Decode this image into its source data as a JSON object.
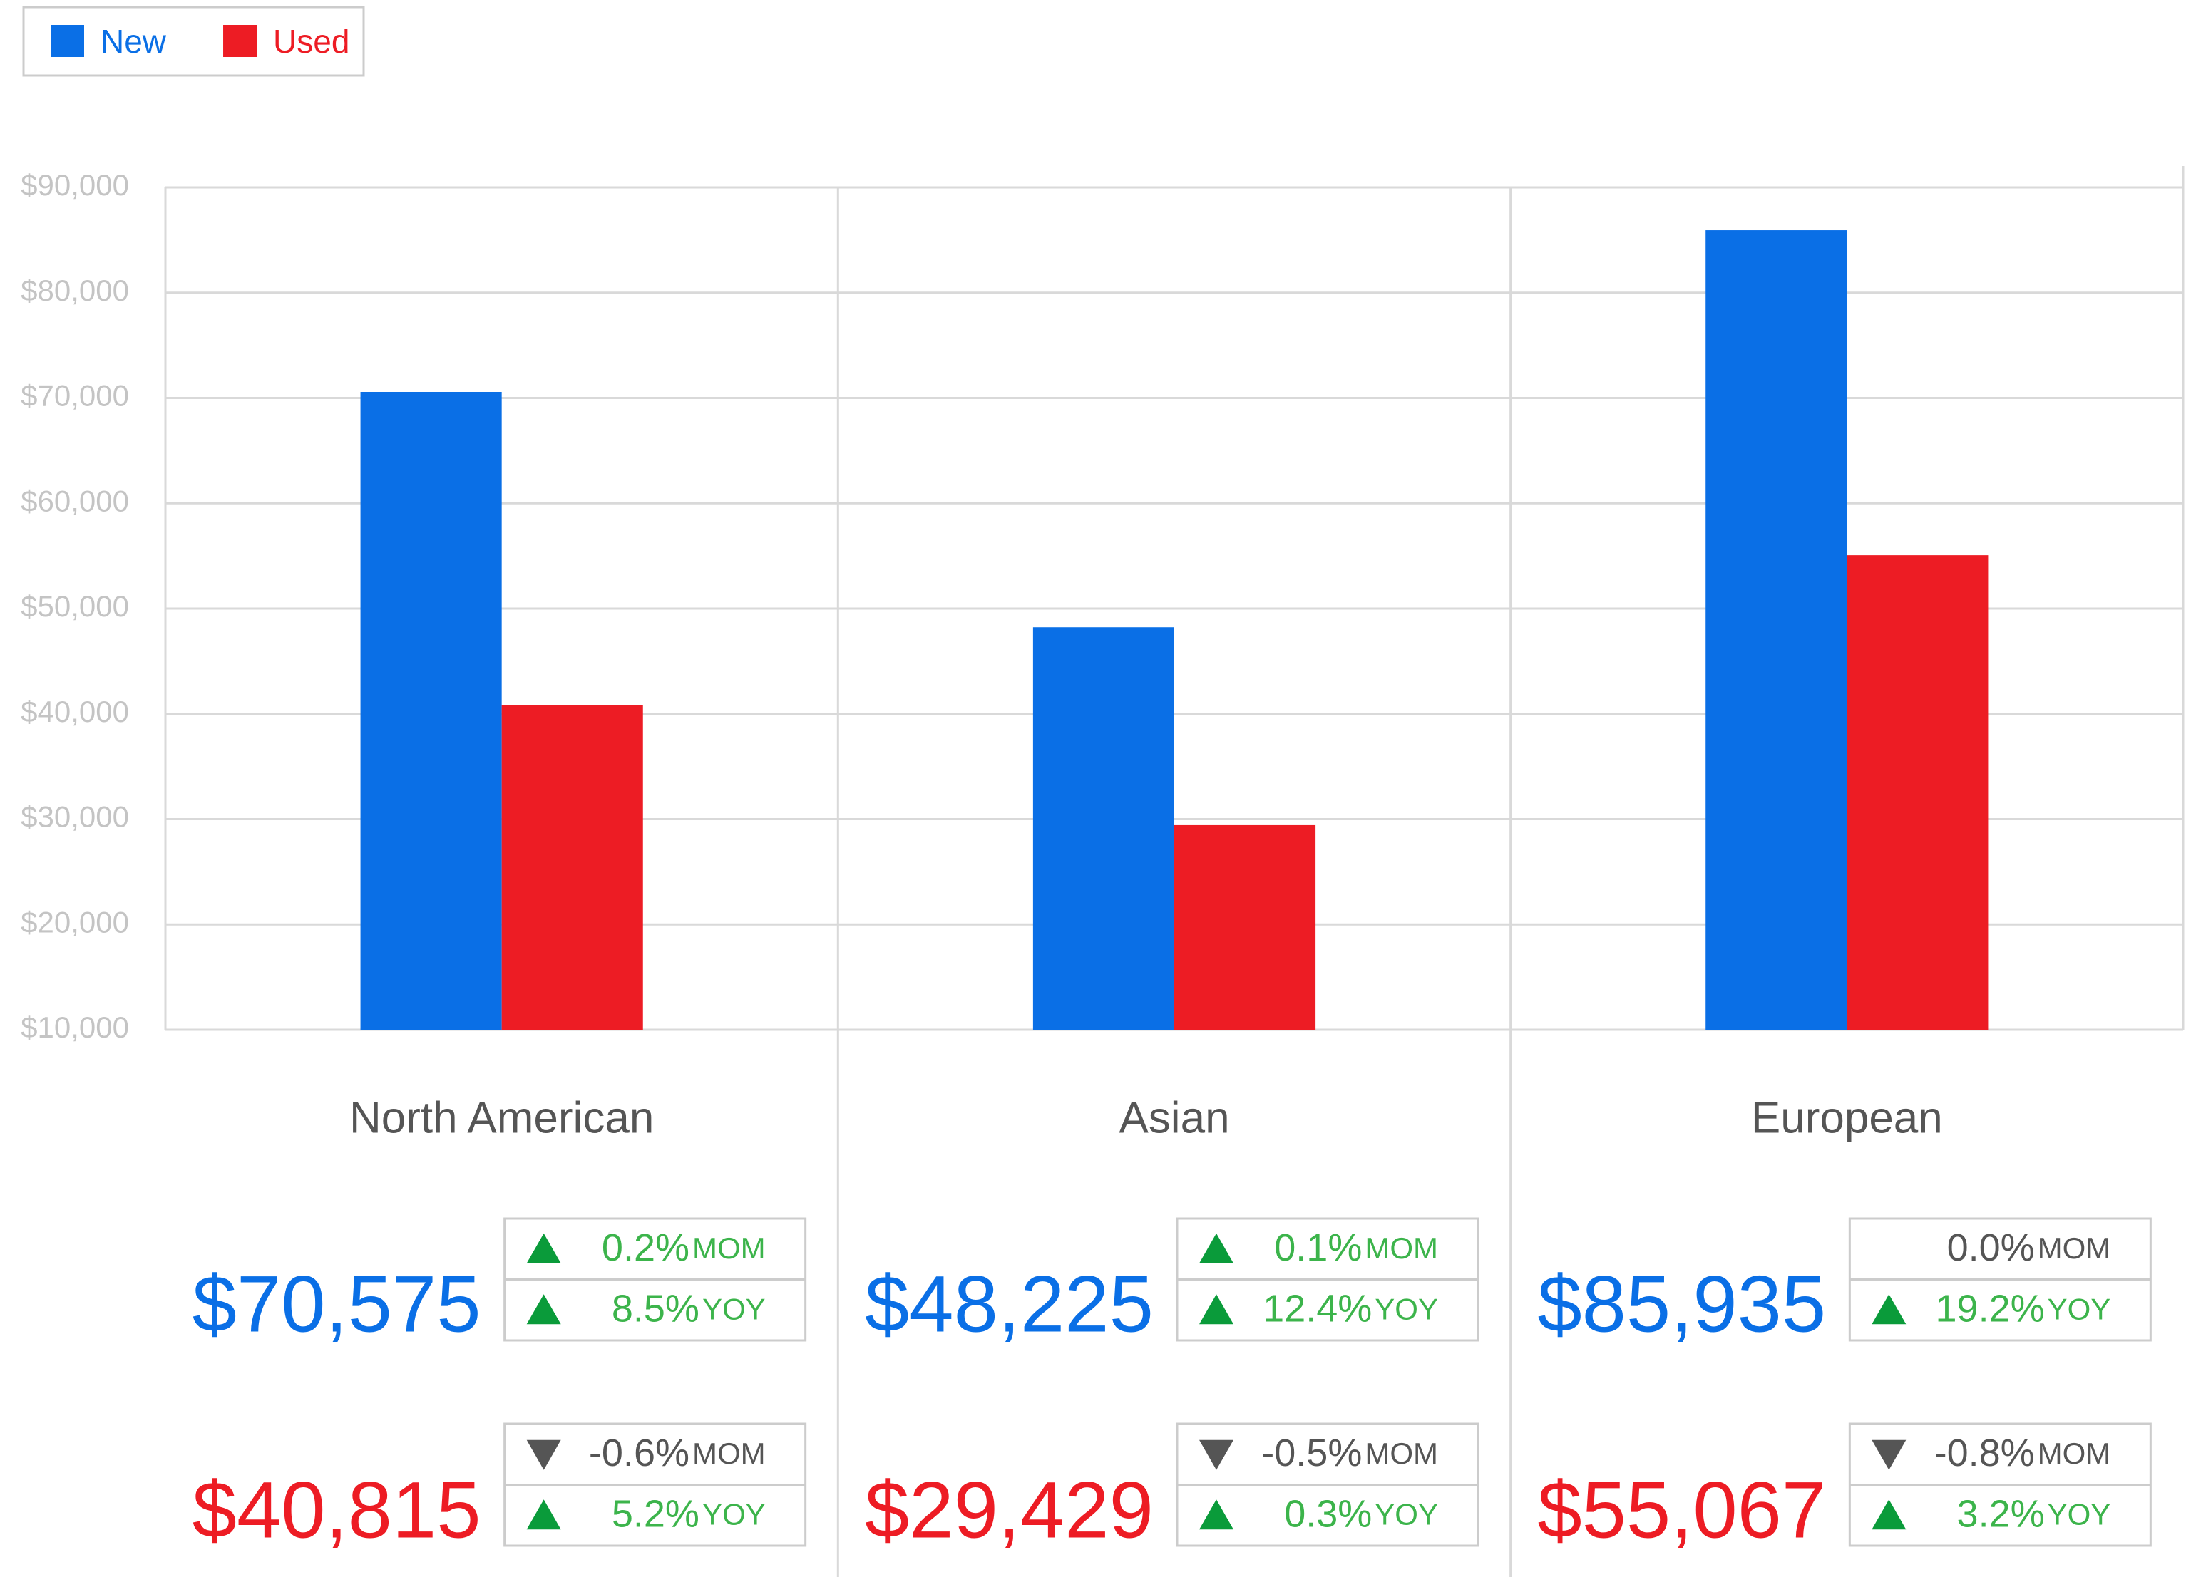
{
  "chart_data": {
    "type": "bar",
    "categories": [
      "North American",
      "Asian",
      "European"
    ],
    "series": [
      {
        "name": "New",
        "color": "#0a6fe6",
        "values": [
          70575,
          48225,
          85935
        ],
        "value_labels": [
          "$70,575",
          "$48,225",
          "$85,935"
        ],
        "mom": [
          0.2,
          0.1,
          0.0
        ],
        "mom_labels": [
          "0.2%",
          "0.1%",
          "0.0%"
        ],
        "yoy": [
          8.5,
          12.4,
          19.2
        ],
        "yoy_labels": [
          "8.5%",
          "12.4%",
          "19.2%"
        ]
      },
      {
        "name": "Used",
        "color": "#ed1c24",
        "values": [
          40815,
          29429,
          55067
        ],
        "value_labels": [
          "$40,815",
          "$29,429",
          "$55,067"
        ],
        "mom": [
          -0.6,
          -0.5,
          -0.8
        ],
        "mom_labels": [
          "-0.6%",
          "-0.5%",
          "-0.8%"
        ],
        "yoy": [
          5.2,
          0.3,
          3.2
        ],
        "yoy_labels": [
          "5.2%",
          "0.3%",
          "3.2%"
        ]
      }
    ],
    "change_names": [
      "MOM",
      "YOY"
    ],
    "ylim": [
      10000,
      90000
    ],
    "yticks": [
      {
        "value": 10000,
        "label": "$10,000"
      },
      {
        "value": 20000,
        "label": "$20,000"
      },
      {
        "value": 30000,
        "label": "$30,000"
      },
      {
        "value": 40000,
        "label": "$40,000"
      },
      {
        "value": 50000,
        "label": "$50,000"
      },
      {
        "value": 60000,
        "label": "$60,000"
      },
      {
        "value": 70000,
        "label": "$70,000"
      },
      {
        "value": 80000,
        "label": "$80,000"
      },
      {
        "value": 90000,
        "label": "$90,000"
      }
    ],
    "grid": true,
    "legend": "top-left"
  }
}
